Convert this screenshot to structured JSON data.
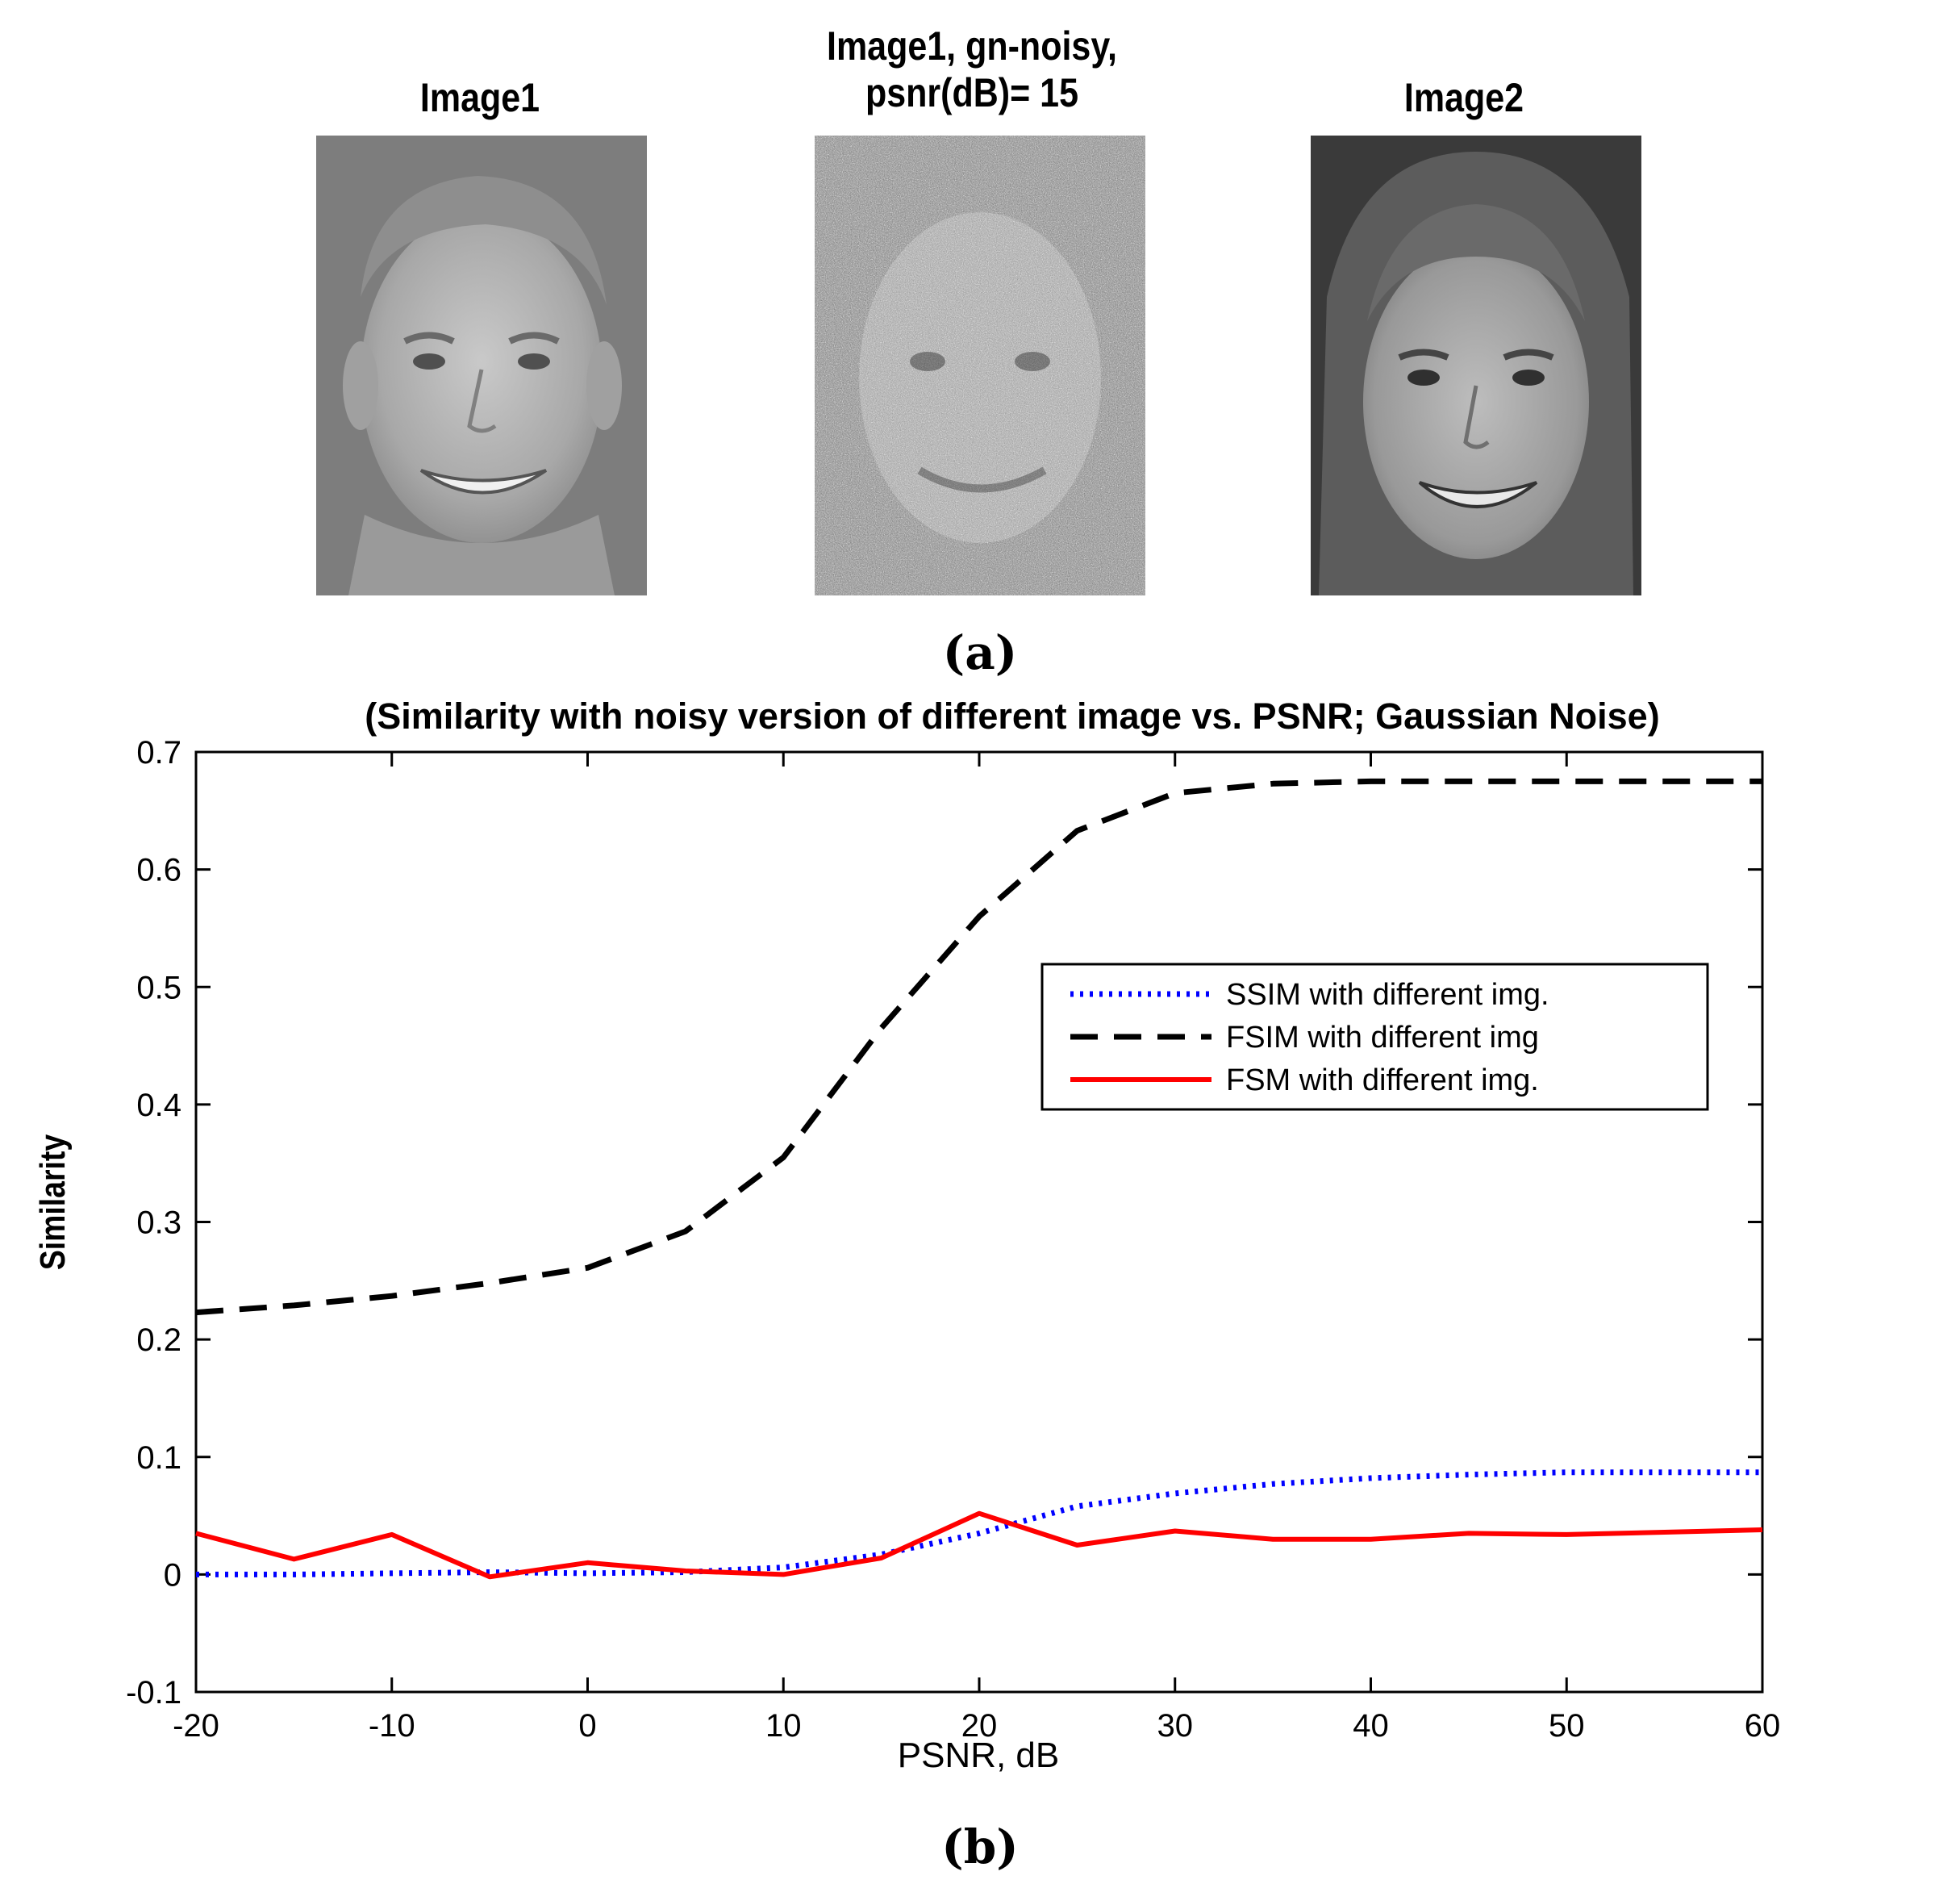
{
  "panel_a": {
    "images": [
      {
        "title_lines": [
          "Image1"
        ]
      },
      {
        "title_lines": [
          "Image1, gn-noisy,",
          "psnr(dB)= 15"
        ]
      },
      {
        "title_lines": [
          "Image2"
        ]
      }
    ],
    "sub_label": "(a)"
  },
  "panel_b": {
    "sub_label": "(b)"
  },
  "chart_data": {
    "type": "line",
    "title": "(Similarity with noisy version of different image vs. PSNR; Gaussian Noise)",
    "xlabel": "PSNR, dB",
    "ylabel": "Similarity",
    "xlim": [
      -20,
      60
    ],
    "ylim": [
      -0.1,
      0.7
    ],
    "xticks": [
      "-20",
      "-10",
      "0",
      "10",
      "20",
      "30",
      "40",
      "50",
      "60"
    ],
    "yticks": [
      "-0.1",
      "0",
      "0.1",
      "0.2",
      "0.3",
      "0.4",
      "0.5",
      "0.6",
      "0.7"
    ],
    "grid": false,
    "legend_position": "center-right",
    "x": [
      -20,
      -15,
      -10,
      -5,
      0,
      5,
      10,
      15,
      20,
      25,
      30,
      35,
      40,
      45,
      50,
      55,
      60
    ],
    "series": [
      {
        "name": "SSIM with different img.",
        "color": "#0000ff",
        "style": "dotted",
        "values": [
          0.0,
          0.0,
          0.001,
          0.002,
          0.001,
          0.002,
          0.006,
          0.017,
          0.035,
          0.058,
          0.069,
          0.077,
          0.082,
          0.085,
          0.087,
          0.087,
          0.087
        ]
      },
      {
        "name": "FSIM with different img",
        "color": "#000000",
        "style": "dashed",
        "values": [
          0.223,
          0.229,
          0.237,
          0.248,
          0.261,
          0.292,
          0.355,
          0.465,
          0.56,
          0.633,
          0.665,
          0.673,
          0.675,
          0.675,
          0.675,
          0.675,
          0.675
        ]
      },
      {
        "name": "FSM with different img.",
        "color": "#ff0000",
        "style": "solid",
        "values": [
          0.035,
          0.013,
          0.034,
          -0.002,
          0.01,
          0.003,
          0.0,
          0.014,
          0.052,
          0.025,
          0.037,
          0.03,
          0.03,
          0.035,
          0.034,
          0.036,
          0.038
        ]
      }
    ]
  }
}
